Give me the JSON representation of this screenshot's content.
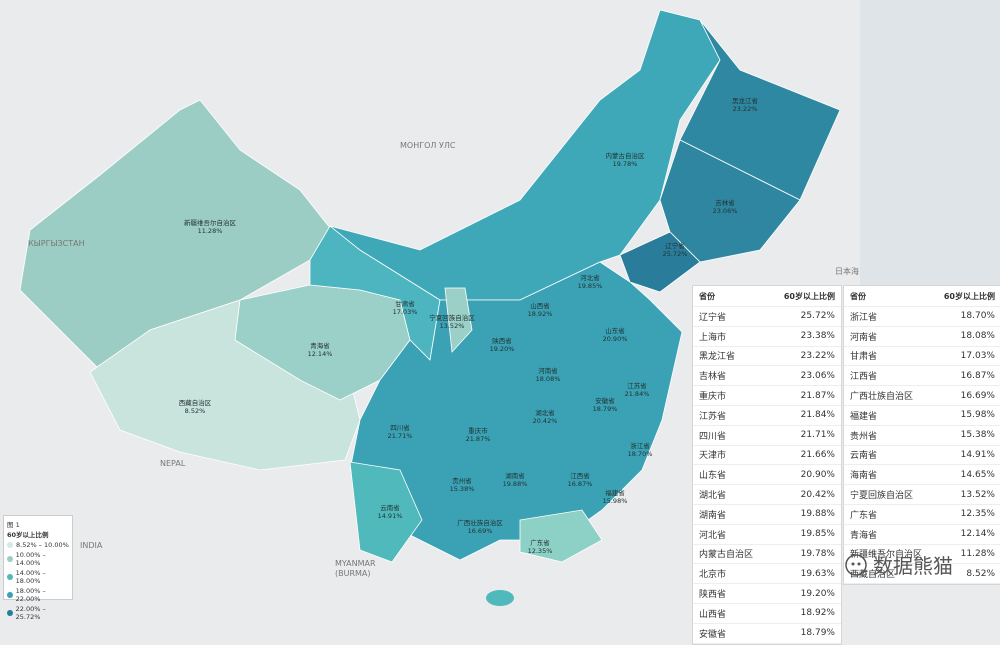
{
  "basemap_labels": [
    "МОНГОЛ УЛС",
    "КЫРГЫЗСТАН",
    "NEPAL",
    "MYANMAR",
    "(BURMA)",
    "INDIA",
    "日本海"
  ],
  "legend": {
    "title": "图 1",
    "subtitle": "60岁以上比例",
    "items": [
      "8.52% – 10.00%",
      "10.00% – 14.00%",
      "14.00% – 18.00%",
      "18.00% – 22.00%",
      "22.00% – 25.72%"
    ]
  },
  "tables": [
    {
      "header": [
        "省份",
        "60岁以上比例"
      ],
      "rows": [
        [
          "辽宁省",
          "25.72%"
        ],
        [
          "上海市",
          "23.38%"
        ],
        [
          "黑龙江省",
          "23.22%"
        ],
        [
          "吉林省",
          "23.06%"
        ],
        [
          "重庆市",
          "21.87%"
        ],
        [
          "江苏省",
          "21.84%"
        ],
        [
          "四川省",
          "21.71%"
        ],
        [
          "天津市",
          "21.66%"
        ],
        [
          "山东省",
          "20.90%"
        ],
        [
          "湖北省",
          "20.42%"
        ],
        [
          "湖南省",
          "19.88%"
        ],
        [
          "河北省",
          "19.85%"
        ],
        [
          "内蒙古自治区",
          "19.78%"
        ],
        [
          "北京市",
          "19.63%"
        ],
        [
          "陕西省",
          "19.20%"
        ],
        [
          "山西省",
          "18.92%"
        ],
        [
          "安徽省",
          "18.79%"
        ]
      ]
    },
    {
      "header": [
        "省份",
        "60岁以上比例"
      ],
      "rows": [
        [
          "浙江省",
          "18.70%"
        ],
        [
          "河南省",
          "18.08%"
        ],
        [
          "甘肃省",
          "17.03%"
        ],
        [
          "江西省",
          "16.87%"
        ],
        [
          "广西壮族自治区",
          "16.69%"
        ],
        [
          "福建省",
          "15.98%"
        ],
        [
          "贵州省",
          "15.38%"
        ],
        [
          "云南省",
          "14.91%"
        ],
        [
          "海南省",
          "14.65%"
        ],
        [
          "宁夏回族自治区",
          "13.52%"
        ],
        [
          "广东省",
          "12.35%"
        ],
        [
          "青海省",
          "12.14%"
        ],
        [
          "新疆维吾尔自治区",
          "11.28%"
        ],
        [
          "西藏自治区",
          "8.52%"
        ]
      ]
    }
  ],
  "watermark": "数据熊猫"
}
